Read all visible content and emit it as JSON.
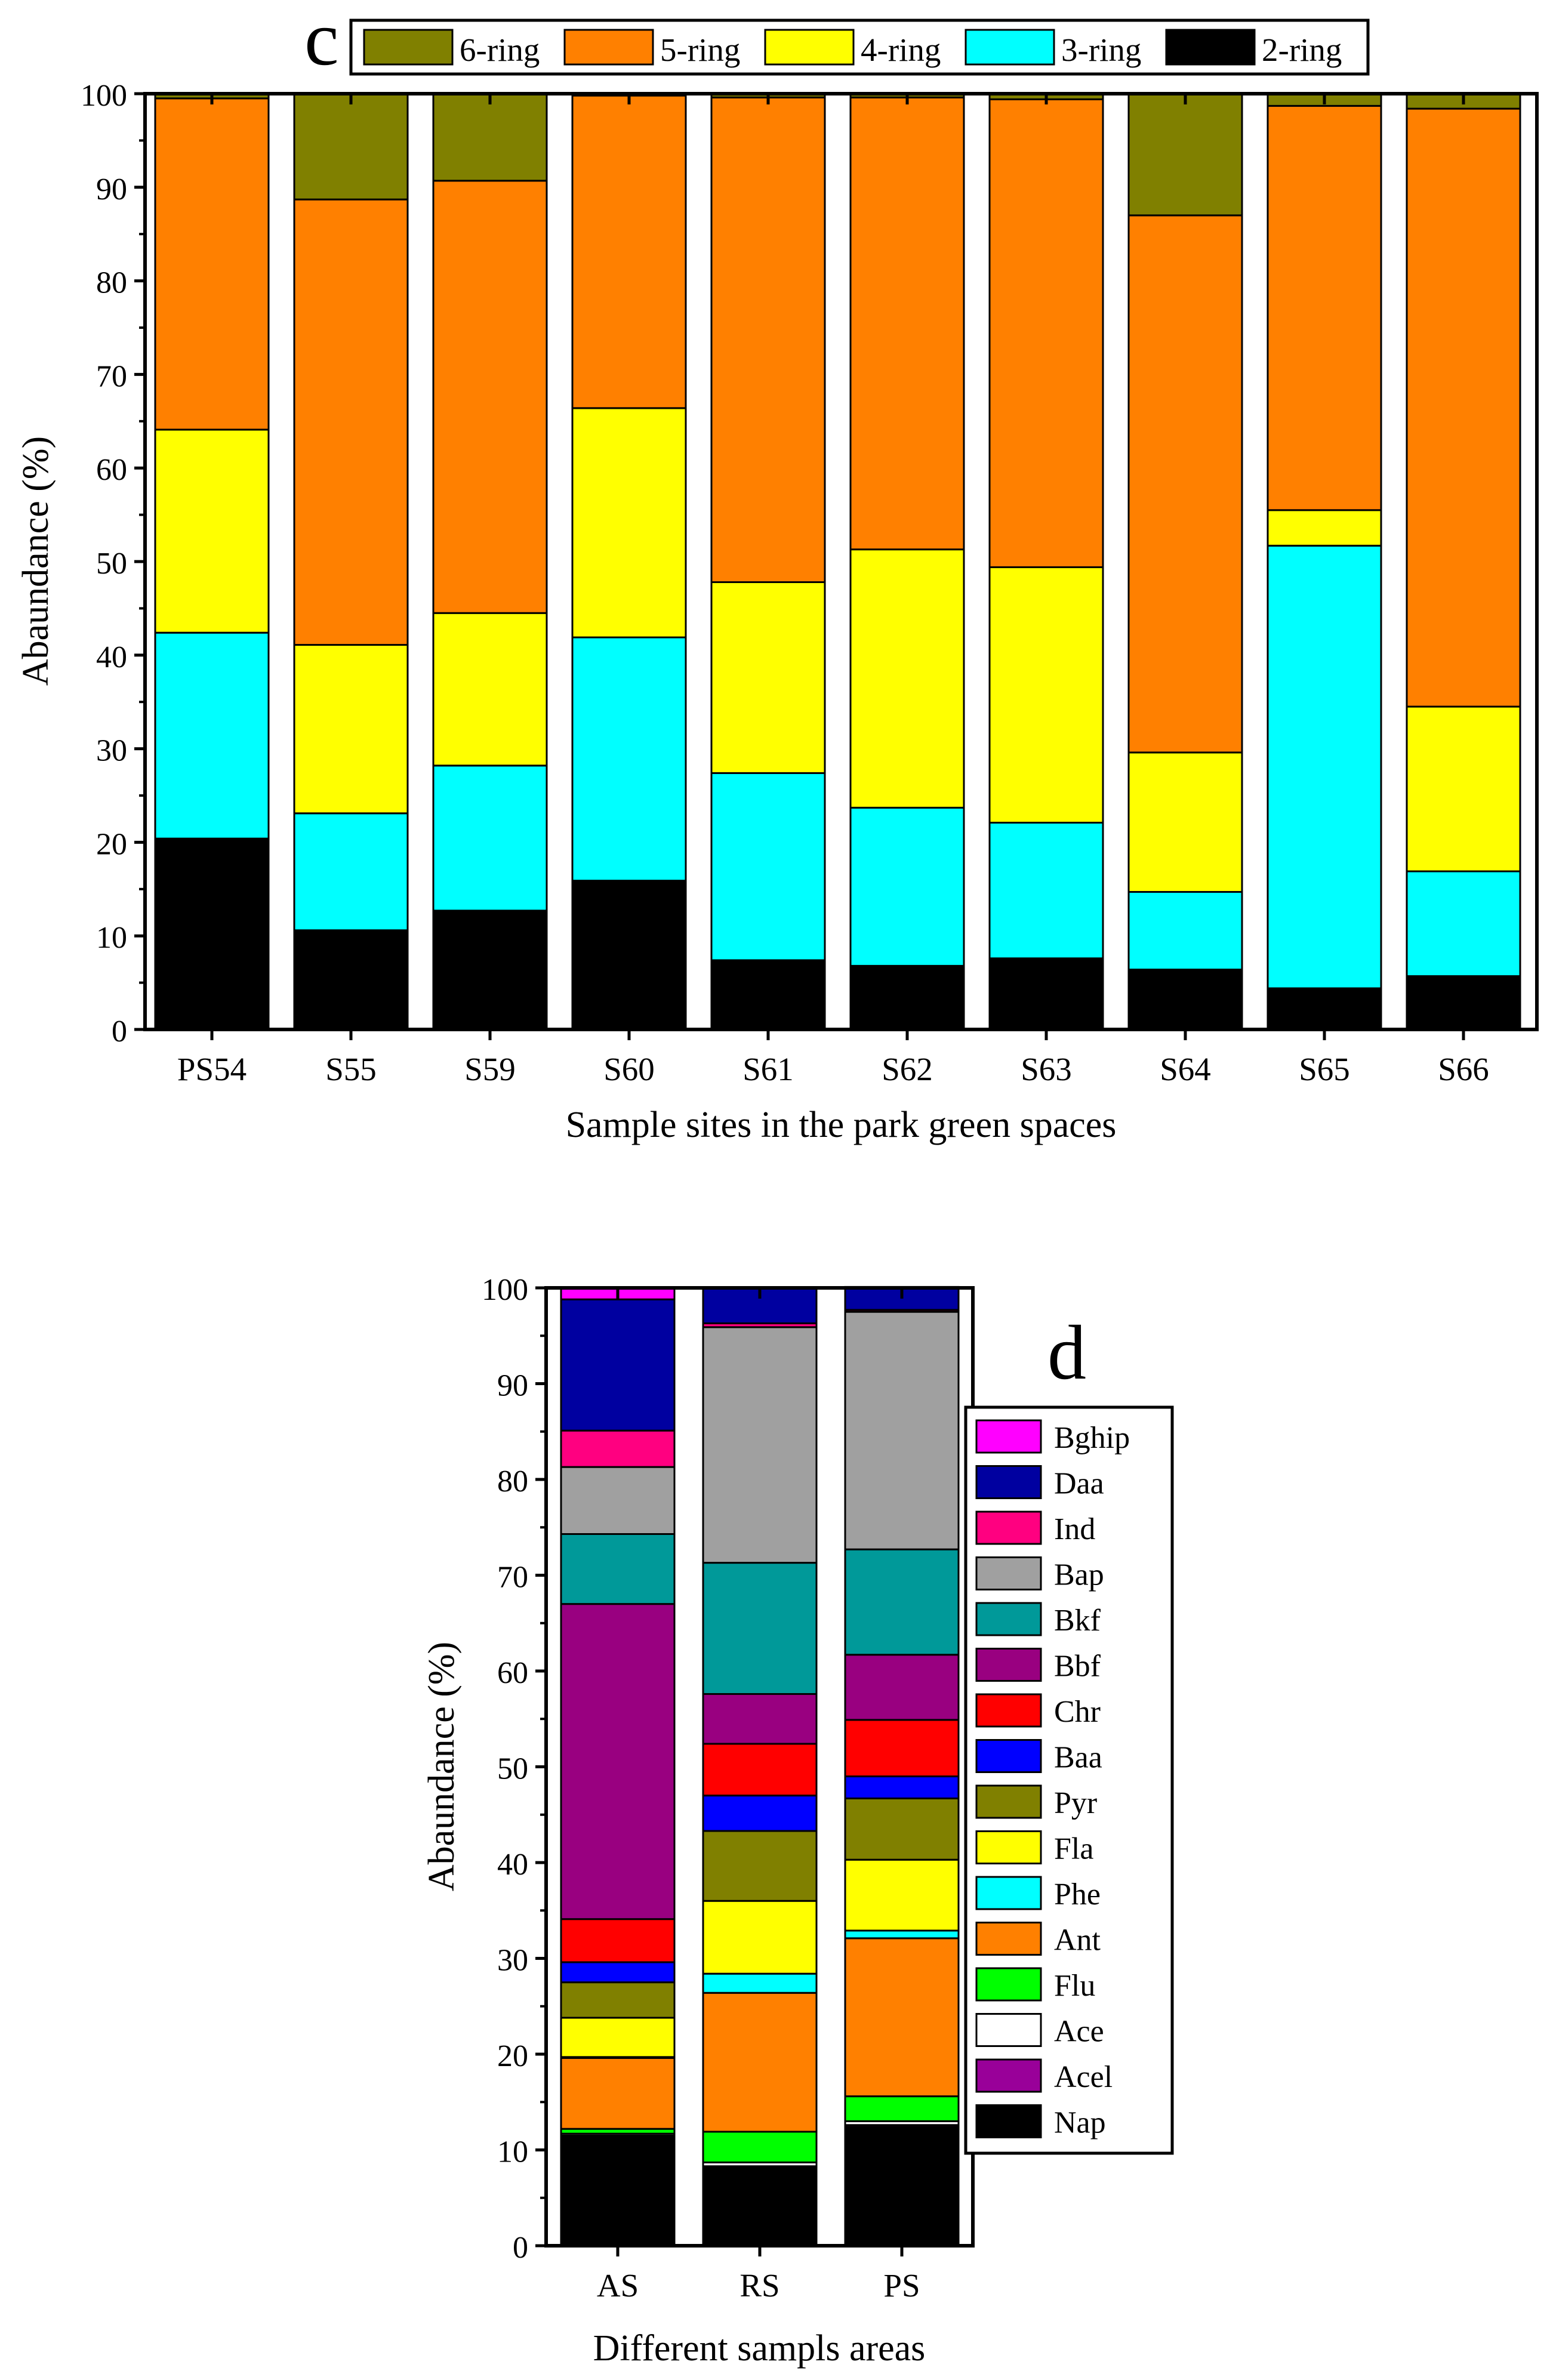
{
  "chart_data": [
    {
      "panel_label": "c",
      "type": "bar",
      "stacked": true,
      "title": "",
      "xlabel": "Sample sites in the park green spaces",
      "ylabel": "Abaundance (%)",
      "ylim": [
        0,
        100
      ],
      "yticks": [
        "0",
        "10",
        "20",
        "30",
        "40",
        "50",
        "60",
        "70",
        "80",
        "90",
        "100"
      ],
      "legend_position": "top",
      "categories": [
        "PS54",
        "S55",
        "S59",
        "S60",
        "S61",
        "S62",
        "S63",
        "S64",
        "S65",
        "S66"
      ],
      "series": [
        {
          "name": "2-ring",
          "color": "#000000",
          "values": [
            20.4,
            10.6,
            12.7,
            15.9,
            7.4,
            6.8,
            7.6,
            6.4,
            4.4,
            5.7
          ]
        },
        {
          "name": "3-ring",
          "color": "#00ffff",
          "values": [
            22.0,
            12.5,
            15.5,
            26.0,
            20.0,
            16.9,
            14.5,
            8.3,
            47.3,
            11.2
          ]
        },
        {
          "name": "4-ring",
          "color": "#ffff00",
          "values": [
            21.7,
            18.0,
            16.3,
            24.5,
            20.4,
            27.6,
            27.3,
            14.9,
            3.8,
            17.6
          ]
        },
        {
          "name": "5-ring",
          "color": "#ff8000",
          "values": [
            35.4,
            47.6,
            46.2,
            33.4,
            51.8,
            48.3,
            50.0,
            57.4,
            43.2,
            63.9
          ]
        },
        {
          "name": "6-ring",
          "color": "#808000",
          "values": [
            0.5,
            11.3,
            9.3,
            0.2,
            0.4,
            0.4,
            0.6,
            13.0,
            1.3,
            1.6
          ]
        }
      ],
      "legend_order": [
        "6-ring",
        "5-ring",
        "4-ring",
        "3-ring",
        "2-ring"
      ]
    },
    {
      "panel_label": "d",
      "type": "bar",
      "stacked": true,
      "title": "",
      "xlabel": "Different sampls areas",
      "ylabel": "Abaundance (%)",
      "ylim": [
        0,
        100
      ],
      "yticks": [
        "0",
        "10",
        "20",
        "30",
        "40",
        "50",
        "60",
        "70",
        "80",
        "90",
        "100"
      ],
      "legend_position": "right",
      "categories": [
        "AS",
        "RS",
        "PS"
      ],
      "series": [
        {
          "name": "Nap",
          "color": "#000000",
          "values": [
            11.4,
            8.2,
            12.4
          ]
        },
        {
          "name": "Acel",
          "color": "#990099",
          "values": [
            0.1,
            0.1,
            0.2
          ]
        },
        {
          "name": "Ace",
          "color": "#ffffff",
          "values": [
            0.2,
            0.4,
            0.4
          ]
        },
        {
          "name": "Flu",
          "color": "#00ff00",
          "values": [
            0.5,
            3.2,
            2.6
          ]
        },
        {
          "name": "Ant",
          "color": "#ff8000",
          "values": [
            7.4,
            14.5,
            16.5
          ]
        },
        {
          "name": "Phe",
          "color": "#00ffff",
          "values": [
            0.1,
            2.0,
            0.8
          ]
        },
        {
          "name": "Fla",
          "color": "#ffff00",
          "values": [
            4.1,
            7.6,
            7.4
          ]
        },
        {
          "name": "Pyr",
          "color": "#808000",
          "values": [
            3.7,
            7.3,
            6.4
          ]
        },
        {
          "name": "Baa",
          "color": "#0000ff",
          "values": [
            2.1,
            3.7,
            2.3
          ]
        },
        {
          "name": "Chr",
          "color": "#ff0000",
          "values": [
            4.5,
            5.4,
            5.9
          ]
        },
        {
          "name": "Bbf",
          "color": "#990080",
          "values": [
            32.9,
            5.2,
            6.8
          ]
        },
        {
          "name": "Bkf",
          "color": "#009999",
          "values": [
            7.3,
            13.7,
            11.0
          ]
        },
        {
          "name": "Bap",
          "color": "#a0a0a0",
          "values": [
            7.0,
            24.6,
            24.8
          ]
        },
        {
          "name": "Ind",
          "color": "#ff0080",
          "values": [
            3.8,
            0.4,
            0.2
          ]
        },
        {
          "name": "Daa",
          "color": "#0000a0",
          "values": [
            13.7,
            3.7,
            2.4
          ]
        },
        {
          "name": "Bghip",
          "color": "#ff00ff",
          "values": [
            1.2,
            0.0,
            0.0
          ]
        }
      ],
      "legend_order": [
        "Bghip",
        "Daa",
        "Ind",
        "Bap",
        "Bkf",
        "Bbf",
        "Chr",
        "Baa",
        "Pyr",
        "Fla",
        "Phe",
        "Ant",
        "Flu",
        "Ace",
        "Acel",
        "Nap"
      ]
    }
  ]
}
